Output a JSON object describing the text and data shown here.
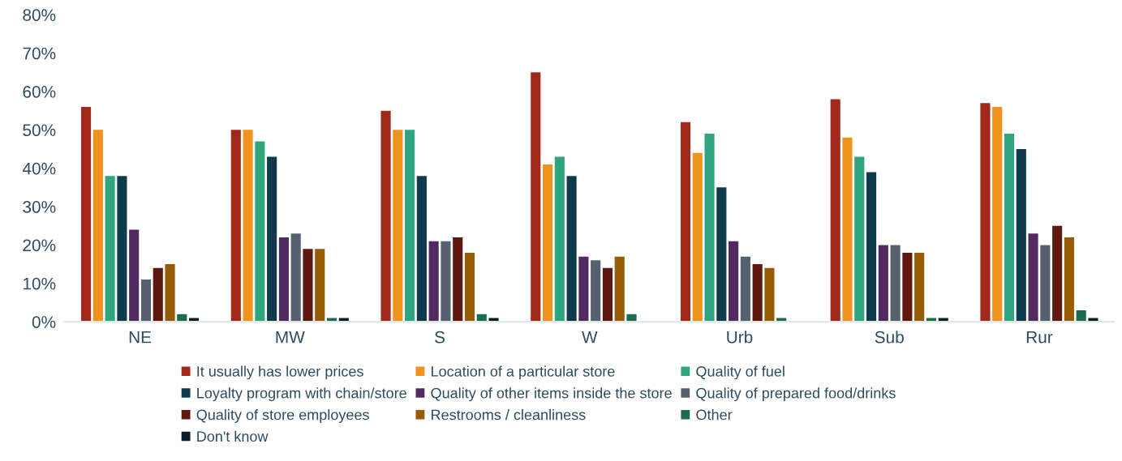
{
  "chart_data": {
    "type": "bar",
    "categories": [
      "NE",
      "MW",
      "S",
      "W",
      "Urb",
      "Sub",
      "Rur"
    ],
    "series": [
      {
        "name": "It usually has lower prices",
        "color": "#a0291b",
        "values": [
          56,
          50,
          55,
          65,
          52,
          58,
          57
        ]
      },
      {
        "name": "Location of a particular store",
        "color": "#f0921e",
        "values": [
          50,
          50,
          50,
          41,
          44,
          48,
          56
        ]
      },
      {
        "name": "Quality of fuel",
        "color": "#2fa57f",
        "values": [
          38,
          47,
          50,
          43,
          49,
          43,
          49
        ]
      },
      {
        "name": "Loyalty program with chain/store",
        "color": "#0f3a4c",
        "values": [
          38,
          43,
          38,
          38,
          35,
          39,
          45
        ]
      },
      {
        "name": "Quality of other items inside the store",
        "color": "#522a62",
        "values": [
          24,
          22,
          21,
          17,
          21,
          20,
          23
        ]
      },
      {
        "name": "Quality of prepared food/drinks",
        "color": "#566170",
        "values": [
          11,
          23,
          21,
          16,
          17,
          20,
          20
        ]
      },
      {
        "name": "Quality of store employees",
        "color": "#5e1810",
        "values": [
          14,
          19,
          22,
          14,
          15,
          18,
          25
        ]
      },
      {
        "name": "Restrooms / cleanliness",
        "color": "#955b05",
        "values": [
          15,
          19,
          18,
          17,
          14,
          18,
          22
        ]
      },
      {
        "name": "Other",
        "color": "#1c6a50",
        "values": [
          2,
          1,
          2,
          2,
          1,
          1,
          3
        ]
      },
      {
        "name": "Don't know",
        "color": "#0c1e2a",
        "values": [
          1,
          1,
          1,
          0,
          0,
          1,
          1
        ]
      }
    ],
    "ylim": [
      0,
      80
    ],
    "yticks": [
      {
        "value": 0,
        "label": "0%"
      },
      {
        "value": 10,
        "label": "10%"
      },
      {
        "value": 20,
        "label": "20%"
      },
      {
        "value": 30,
        "label": "30%"
      },
      {
        "value": 40,
        "label": "40%"
      },
      {
        "value": 50,
        "label": "50%"
      },
      {
        "value": 60,
        "label": "60%"
      },
      {
        "value": 70,
        "label": "70%"
      },
      {
        "value": 80,
        "label": "80%"
      }
    ],
    "grid": false,
    "legend": "bottom"
  }
}
